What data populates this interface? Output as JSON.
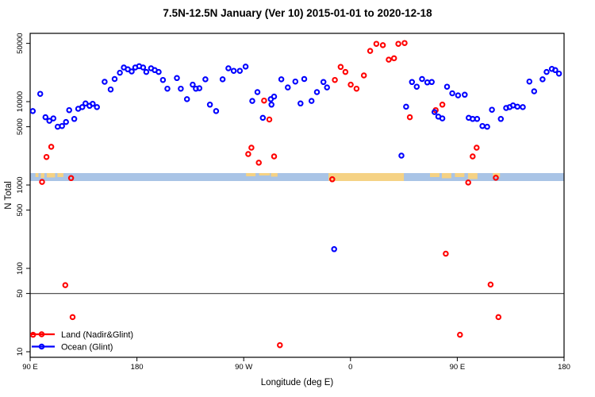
{
  "title": "7.5N-12.5N January (Ver 10)   2015-01-01 to 2020-12-18",
  "chart_data": {
    "type": "scatter",
    "title": "7.5N-12.5N January (Ver 10)   2015-01-01 to 2020-12-18",
    "xlabel": "Longitude (deg E)",
    "ylabel": "N Total",
    "grid": false,
    "legend_position": "bottom-left",
    "x_axis": {
      "note": "longitude axis wraps eastward; plotted continuously from 90E to 180E(+360)",
      "range_plot_deg": [
        90,
        540
      ],
      "ticks_plot_deg": [
        90,
        180,
        270,
        360,
        450,
        540
      ],
      "tick_labels": [
        "90 E",
        "180",
        "90 W",
        "0",
        "90 E",
        "180"
      ]
    },
    "y_axis": {
      "scale": "log10",
      "ticks": [
        10,
        50,
        100,
        500,
        1000,
        5000,
        10000,
        50000
      ],
      "range": [
        8.5,
        66000
      ]
    },
    "reference_line_value": 50,
    "reference_line_color": "#555555",
    "map_strip": {
      "value_top": 1390,
      "value_bottom": 1116,
      "ocean_color": "#A9C4E6",
      "land_color": "#F5D284",
      "land_patches_deg": [
        {
          "from": 94.5,
          "to": 97,
          "frac": 0.5
        },
        {
          "from": 99,
          "to": 102,
          "frac": 0.6
        },
        {
          "from": 104,
          "to": 111,
          "frac": 0.55
        },
        {
          "from": 113,
          "to": 118,
          "frac": 0.5
        },
        {
          "from": 272,
          "to": 280,
          "frac": 0.4
        },
        {
          "from": 283,
          "to": 292,
          "frac": 0.3
        },
        {
          "from": 293,
          "to": 298.5,
          "frac": 0.45
        },
        {
          "from": 341.5,
          "to": 405,
          "frac": 1.0
        },
        {
          "from": 427,
          "to": 435,
          "frac": 0.5
        },
        {
          "from": 437,
          "to": 445,
          "frac": 0.65
        },
        {
          "from": 448,
          "to": 456,
          "frac": 0.5
        },
        {
          "from": 459,
          "to": 467,
          "frac": 0.75
        },
        {
          "from": 480,
          "to": 486,
          "frac": 0.5
        }
      ]
    },
    "series": [
      {
        "name": "Land (Nadir&Glint)",
        "color": "#FF0000",
        "points": [
          [
            92.5,
            16
          ],
          [
            100,
            1090
          ],
          [
            103.8,
            2170
          ],
          [
            107.8,
            2870
          ],
          [
            119.6,
            63
          ],
          [
            124.5,
            1210
          ],
          [
            125.8,
            26
          ],
          [
            273.8,
            2350
          ],
          [
            276.5,
            2800
          ],
          [
            282.7,
            1850
          ],
          [
            287.2,
            10300
          ],
          [
            291.6,
            6100
          ],
          [
            295.6,
            2200
          ],
          [
            300.5,
            12
          ],
          [
            344.6,
            1170
          ],
          [
            346.8,
            18200
          ],
          [
            351.7,
            26100
          ],
          [
            355.7,
            22700
          ],
          [
            360.2,
            16000
          ],
          [
            365.1,
            14300
          ],
          [
            371.3,
            20600
          ],
          [
            376.6,
            40600
          ],
          [
            381.8,
            49400
          ],
          [
            387.3,
            47600
          ],
          [
            392.2,
            31900
          ],
          [
            396.7,
            33100
          ],
          [
            400.3,
            49400
          ],
          [
            405.6,
            50500
          ],
          [
            410,
            6500
          ],
          [
            431.8,
            7900
          ],
          [
            437.4,
            9200
          ],
          [
            440.3,
            150
          ],
          [
            452.3,
            16
          ],
          [
            459.2,
            1070
          ],
          [
            463,
            2200
          ],
          [
            466.3,
            2800
          ],
          [
            478.1,
            64
          ],
          [
            482.5,
            1220
          ],
          [
            484.7,
            26
          ]
        ]
      },
      {
        "name": "Ocean (Glint)",
        "color": "#0000FF",
        "points": [
          [
            92.2,
            7700
          ],
          [
            98.5,
            12400
          ],
          [
            102.9,
            6500
          ],
          [
            106.2,
            5900
          ],
          [
            109.6,
            6300
          ],
          [
            113.2,
            5000
          ],
          [
            116.9,
            5100
          ],
          [
            120.2,
            5700
          ],
          [
            122.9,
            7900
          ],
          [
            127.2,
            6200
          ],
          [
            130.5,
            8200
          ],
          [
            133.9,
            8600
          ],
          [
            136.7,
            9500
          ],
          [
            140.1,
            8900
          ],
          [
            142.7,
            9400
          ],
          [
            146.3,
            8600
          ],
          [
            152.8,
            17300
          ],
          [
            157.9,
            14000
          ],
          [
            161.2,
            18700
          ],
          [
            165.6,
            22200
          ],
          [
            169,
            25700
          ],
          [
            172.3,
            24400
          ],
          [
            175.6,
            23000
          ],
          [
            178.6,
            25700
          ],
          [
            181.9,
            26600
          ],
          [
            185.2,
            25700
          ],
          [
            187.9,
            22700
          ],
          [
            191.9,
            25100
          ],
          [
            195,
            23900
          ],
          [
            198.3,
            22700
          ],
          [
            201.9,
            18200
          ],
          [
            205.7,
            14300
          ],
          [
            213.7,
            19200
          ],
          [
            217,
            14300
          ],
          [
            222.2,
            10700
          ],
          [
            227,
            16000
          ],
          [
            229.7,
            14300
          ],
          [
            232.6,
            14500
          ],
          [
            237.7,
            18500
          ],
          [
            241.5,
            9200
          ],
          [
            246.7,
            7700
          ],
          [
            252.2,
            18500
          ],
          [
            257.1,
            25100
          ],
          [
            261.6,
            23400
          ],
          [
            266.7,
            23400
          ],
          [
            271.6,
            26300
          ],
          [
            277.2,
            10200
          ],
          [
            281.6,
            13000
          ],
          [
            286.1,
            6400
          ],
          [
            292.8,
            10700
          ],
          [
            293.4,
            9200
          ],
          [
            295.6,
            11500
          ],
          [
            301.7,
            18500
          ],
          [
            307.2,
            14800
          ],
          [
            313.5,
            17400
          ],
          [
            317.9,
            9500
          ],
          [
            321,
            18700
          ],
          [
            327.2,
            10200
          ],
          [
            331.7,
            13000
          ],
          [
            337.2,
            17200
          ],
          [
            340.2,
            14800
          ],
          [
            346.2,
            170
          ],
          [
            402.9,
            2250
          ],
          [
            406.9,
            8700
          ],
          [
            411.8,
            17200
          ],
          [
            415.8,
            15100
          ],
          [
            420.3,
            18700
          ],
          [
            424.7,
            17000
          ],
          [
            428.5,
            17200
          ],
          [
            430.8,
            7500
          ],
          [
            434,
            6600
          ],
          [
            437.4,
            6300
          ],
          [
            441.4,
            15100
          ],
          [
            445.8,
            12600
          ],
          [
            450.7,
            11900
          ],
          [
            456.3,
            12100
          ],
          [
            459.6,
            6400
          ],
          [
            463,
            6200
          ],
          [
            466.7,
            6200
          ],
          [
            471.2,
            5100
          ],
          [
            475.2,
            5000
          ],
          [
            479.2,
            8000
          ],
          [
            486.7,
            6200
          ],
          [
            491.2,
            8400
          ],
          [
            494.1,
            8600
          ],
          [
            497,
            9000
          ],
          [
            500.7,
            8700
          ],
          [
            505.2,
            8600
          ],
          [
            510.8,
            17400
          ],
          [
            514.8,
            13300
          ],
          [
            521.9,
            18500
          ],
          [
            525.3,
            22700
          ],
          [
            529.7,
            24700
          ],
          [
            532.6,
            23900
          ],
          [
            535.7,
            21700
          ]
        ]
      }
    ]
  },
  "legend": {
    "items": [
      {
        "label": "Land (Nadir&Glint)",
        "color": "#FF0000"
      },
      {
        "label": "Ocean (Glint)",
        "color": "#0000FF"
      }
    ]
  }
}
